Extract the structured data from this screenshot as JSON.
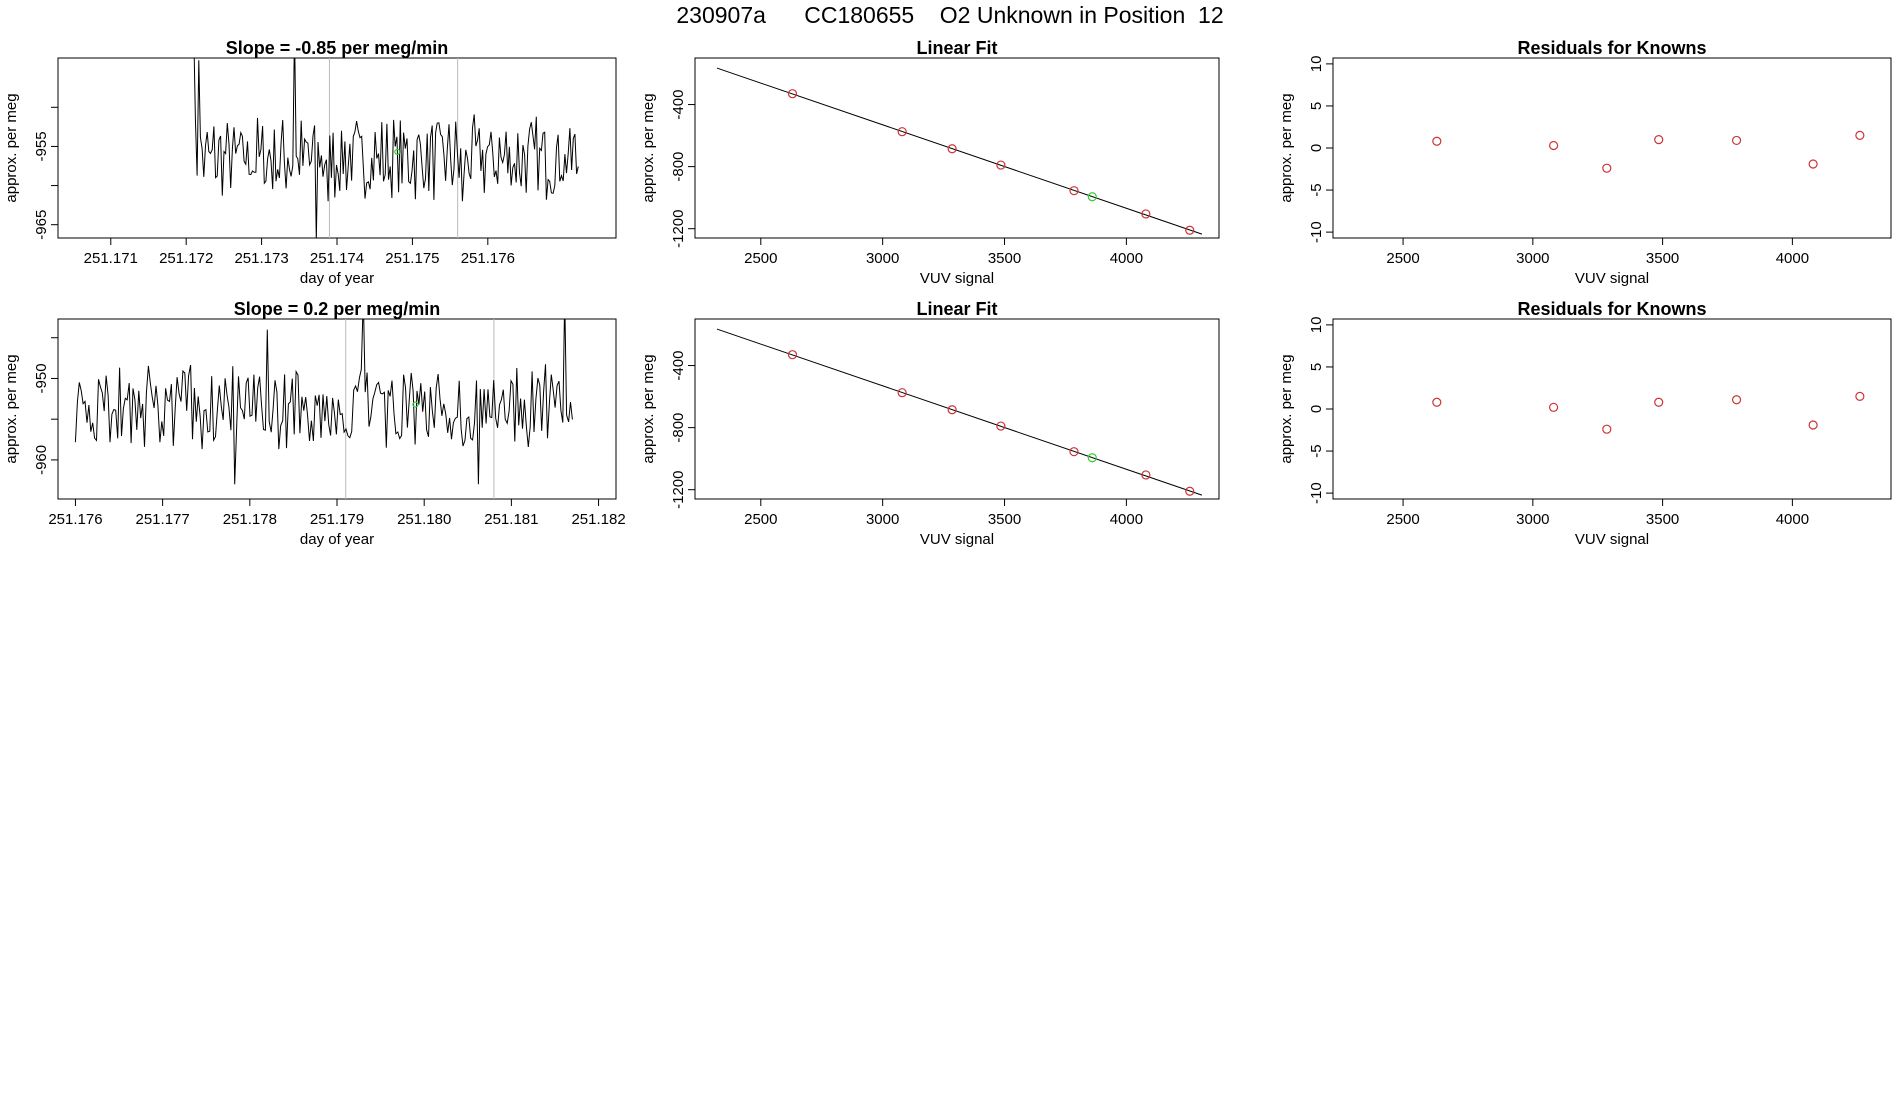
{
  "page_title": "230907a      CC180655    O2 Unknown in Position  12",
  "chart_data": [
    {
      "id": "ts1",
      "type": "line",
      "title": "Slope =  -0.85  per meg/min",
      "xlabel": "day of year",
      "ylabel": "approx. per meg",
      "xlim": [
        251.1703,
        251.1777
      ],
      "ylim": [
        -966.7,
        -943.7
      ],
      "xticks": [
        251.171,
        251.172,
        251.173,
        251.174,
        251.175,
        251.176
      ],
      "xtick_labels": [
        "251.171",
        "251.172",
        "251.173",
        "251.174",
        "251.175",
        "251.176"
      ],
      "yticks": [
        -965,
        -960,
        -955,
        -950
      ],
      "ytick_labels": [
        "-965",
        "",
        "-955",
        ""
      ],
      "vlines": [
        251.1739,
        251.1756
      ],
      "x_start": 251.1721,
      "x_end": 251.1772,
      "n_points": 230,
      "mean": -956.5,
      "amplitude": 4.6,
      "spikes": [
        [
          0,
          -940
        ],
        [
          3,
          -944
        ],
        [
          60,
          -940
        ],
        [
          73,
          -967
        ],
        [
          80,
          -962
        ],
        [
          160,
          -962
        ]
      ],
      "marker": {
        "x": 251.1748,
        "y": -955.7,
        "color": "#33cc33"
      }
    },
    {
      "id": "ts2",
      "type": "line",
      "title": "Slope =  0.2  per meg/min",
      "xlabel": "day of year",
      "ylabel": "approx. per meg",
      "xlim": [
        251.1758,
        251.1822
      ],
      "ylim": [
        -964.8,
        -942.7
      ],
      "xticks": [
        251.176,
        251.177,
        251.178,
        251.179,
        251.18,
        251.181,
        251.182
      ],
      "xtick_labels": [
        "251.176",
        "251.177",
        "251.178",
        "251.179",
        "251.180",
        "251.181",
        "251.182"
      ],
      "yticks": [
        -960,
        -955,
        -950,
        -945
      ],
      "ytick_labels": [
        "-960",
        "",
        "-950",
        ""
      ],
      "vlines": [
        251.1791,
        251.1808
      ],
      "x_start": 251.176,
      "x_end": 251.1817,
      "n_points": 260,
      "mean": -953.6,
      "amplitude": 4.3,
      "spikes": [
        [
          83,
          -963
        ],
        [
          100,
          -944
        ],
        [
          150,
          -940
        ],
        [
          210,
          -963
        ],
        [
          255,
          -940
        ]
      ],
      "marker": {
        "x": 251.1799,
        "y": -953.2,
        "color": "#33cc33"
      }
    },
    {
      "id": "fit1",
      "type": "scatter",
      "title": "Linear Fit",
      "xlabel": "VUV signal",
      "ylabel": "approx. per meg",
      "xlim": [
        2230,
        4380
      ],
      "ylim": [
        -1260,
        -100
      ],
      "xticks": [
        2500,
        3000,
        3500,
        4000
      ],
      "yticks": [
        -1200,
        -800,
        -400
      ],
      "line": {
        "x": [
          2320,
          4310
        ],
        "y": [
          -165,
          -1235
        ]
      },
      "knowns": {
        "x": [
          2630,
          3080,
          3285,
          3485,
          3785,
          4080,
          4260
        ],
        "y": [
          -330,
          -575,
          -685,
          -790,
          -955,
          -1105,
          -1210
        ]
      },
      "unknown": {
        "x": 3860,
        "y": -994
      },
      "known_color": "#cc3333",
      "unknown_color": "#33cc33"
    },
    {
      "id": "res1",
      "type": "scatter",
      "title": "Residuals for Knowns",
      "xlabel": "VUV signal",
      "ylabel": "approx. per meg",
      "xlim": [
        2230,
        4380
      ],
      "ylim": [
        -10.7,
        10.7
      ],
      "xticks": [
        2500,
        3000,
        3500,
        4000
      ],
      "yticks": [
        -10,
        -5,
        0,
        5,
        10
      ],
      "points": {
        "x": [
          2630,
          3080,
          3285,
          3485,
          3785,
          4080,
          4260
        ],
        "y": [
          0.8,
          0.3,
          -2.4,
          1.0,
          0.9,
          -1.9,
          1.5
        ]
      },
      "color": "#cc3333"
    },
    {
      "id": "fit2",
      "type": "scatter",
      "title": "Linear Fit",
      "xlabel": "VUV signal",
      "ylabel": "approx. per meg",
      "xlim": [
        2230,
        4380
      ],
      "ylim": [
        -1260,
        -100
      ],
      "xticks": [
        2500,
        3000,
        3500,
        4000
      ],
      "yticks": [
        -1200,
        -800,
        -400
      ],
      "line": {
        "x": [
          2320,
          4310
        ],
        "y": [
          -165,
          -1235
        ]
      },
      "knowns": {
        "x": [
          2630,
          3080,
          3285,
          3485,
          3785,
          4080,
          4260
        ],
        "y": [
          -330,
          -575,
          -685,
          -790,
          -955,
          -1105,
          -1210
        ]
      },
      "unknown": {
        "x": 3860,
        "y": -994
      },
      "known_color": "#cc3333",
      "unknown_color": "#33cc33"
    },
    {
      "id": "res2",
      "type": "scatter",
      "title": "Residuals for Knowns",
      "xlabel": "VUV signal",
      "ylabel": "approx. per meg",
      "xlim": [
        2230,
        4380
      ],
      "ylim": [
        -10.7,
        10.7
      ],
      "xticks": [
        2500,
        3000,
        3500,
        4000
      ],
      "yticks": [
        -10,
        -5,
        0,
        5,
        10
      ],
      "points": {
        "x": [
          2630,
          3080,
          3285,
          3485,
          3785,
          4080,
          4260
        ],
        "y": [
          0.8,
          0.2,
          -2.4,
          0.8,
          1.1,
          -1.9,
          1.5
        ]
      },
      "color": "#cc3333"
    }
  ]
}
